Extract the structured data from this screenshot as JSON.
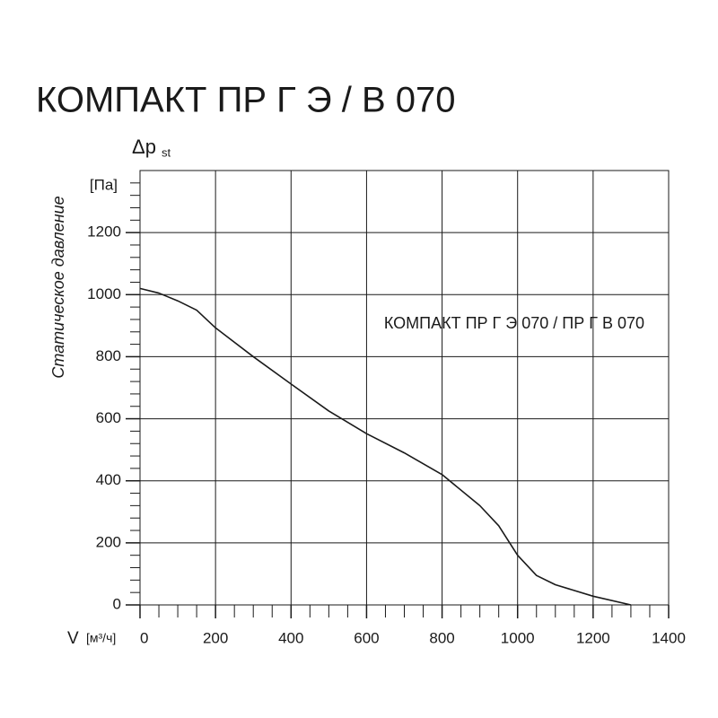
{
  "chart_data": {
    "type": "line",
    "title": "КОМПАКТ ПР Г Э / В 070",
    "annotation": "КОМПАКТ ПР Г Э 070 / ПР Г В 070",
    "y_symbol": "Δp",
    "y_symbol_sub": "st",
    "y_unit": "[Па]",
    "y_label": "Статическое давление",
    "x_label": "V",
    "x_unit": "[м³/ч]",
    "x": [
      0,
      50,
      100,
      150,
      200,
      300,
      400,
      500,
      600,
      700,
      800,
      900,
      950,
      1000,
      1050,
      1100,
      1200,
      1300
    ],
    "series": [
      {
        "name": "КОМПАКТ ПР Г Э 070 / ПР Г В 070",
        "color": "#1a1a1a",
        "values": [
          1020,
          1005,
          980,
          950,
          893,
          800,
          712,
          625,
          552,
          490,
          420,
          320,
          255,
          160,
          95,
          65,
          28,
          0
        ]
      }
    ],
    "xlim": [
      0,
      1400
    ],
    "ylim": [
      0,
      1400
    ],
    "xticks": [
      0,
      200,
      400,
      600,
      800,
      1000,
      1200,
      1400
    ],
    "yticks": [
      0,
      200,
      400,
      600,
      800,
      1000,
      1200
    ],
    "x_minor_ticks": [
      50,
      100,
      150,
      250,
      300,
      350,
      450,
      500,
      550,
      650,
      700,
      750,
      850,
      900,
      950,
      1050,
      1100,
      1150,
      1250,
      1300,
      1350
    ],
    "y_minor_ticks": [
      40,
      80,
      120,
      160,
      240,
      280,
      320,
      360,
      440,
      480,
      520,
      560,
      640,
      680,
      720,
      760,
      840,
      880,
      920,
      960,
      1040,
      1080,
      1120,
      1160,
      1240,
      1280,
      1320,
      1360
    ],
    "grid": true
  }
}
